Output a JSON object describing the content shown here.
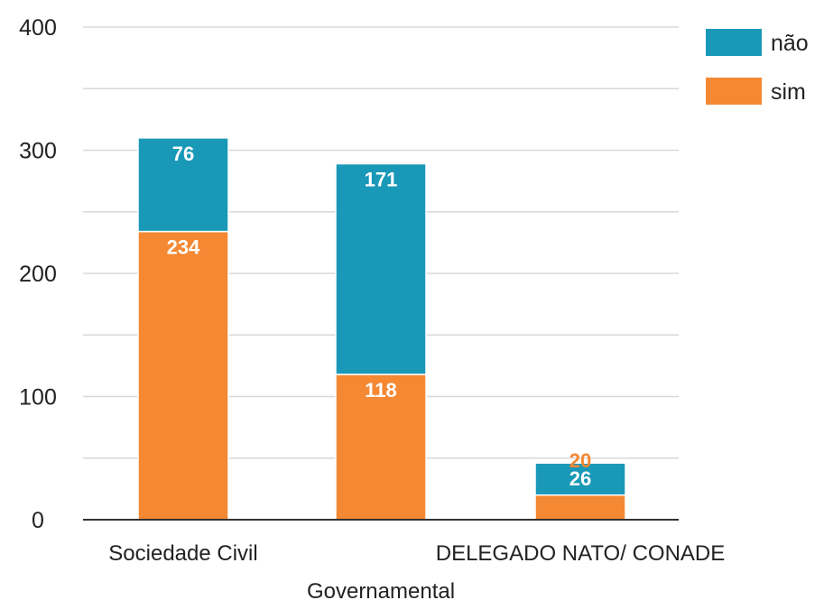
{
  "chart_data": {
    "type": "bar",
    "stacked": true,
    "categories": [
      "Sociedade Civil",
      "Governamental",
      "DELEGADO NATO/ CONADE"
    ],
    "series": [
      {
        "name": "sim",
        "values": [
          234,
          118,
          20
        ],
        "color": "#f58833"
      },
      {
        "name": "não",
        "values": [
          76,
          171,
          26
        ],
        "color": "#1a98b8"
      }
    ],
    "ylim": [
      0,
      400
    ],
    "yticks": [
      0,
      100,
      200,
      300,
      400
    ],
    "grid": true,
    "legend_position": "top-right",
    "legend_order": [
      "não",
      "sim"
    ],
    "title": "",
    "xlabel": "",
    "ylabel": ""
  }
}
